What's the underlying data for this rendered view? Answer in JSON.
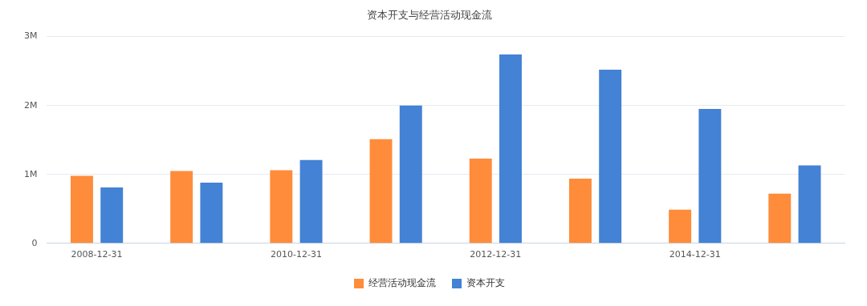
{
  "chart_data": {
    "type": "bar",
    "title": "资本开支与经营活动现金流",
    "categories": [
      "2008-12-31",
      null,
      "2010-12-31",
      null,
      "2012-12-31",
      null,
      "2014-12-31",
      null
    ],
    "series": [
      {
        "name": "经营活动现金流",
        "color": "#ff8c3a",
        "values": [
          980000,
          1050000,
          1060000,
          1510000,
          1230000,
          940000,
          490000,
          720000
        ]
      },
      {
        "name": "资本开支",
        "color": "#4382d4",
        "values": [
          810000,
          880000,
          1210000,
          2000000,
          2740000,
          2520000,
          1950000,
          1130000
        ]
      }
    ],
    "ylim": [
      0,
      3000000
    ],
    "yticks": [
      {
        "value": 0,
        "label": "0"
      },
      {
        "value": 1000000,
        "label": "1M"
      },
      {
        "value": 2000000,
        "label": "2M"
      },
      {
        "value": 3000000,
        "label": "3M"
      }
    ],
    "grid": "y",
    "legend": "bottom"
  }
}
